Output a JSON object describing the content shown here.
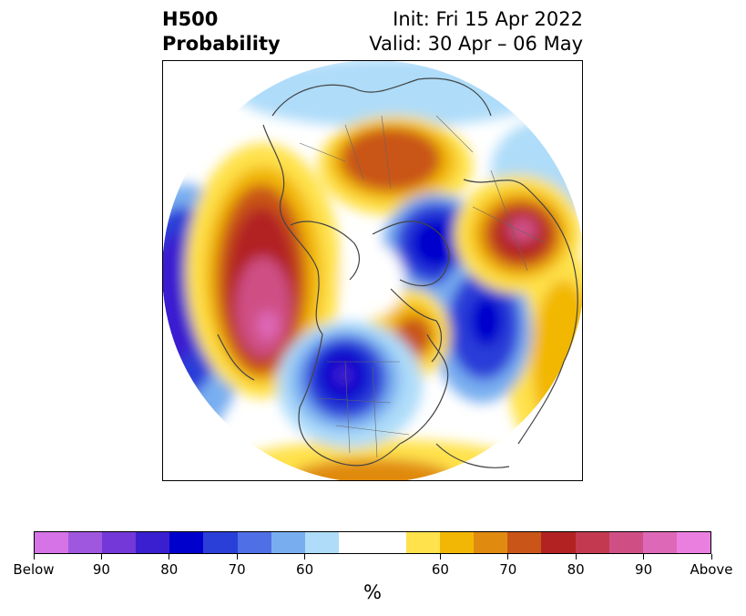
{
  "header": {
    "title_line1": "H500",
    "title_line2": "Probability",
    "init": "Init: Fri 15 Apr 2022",
    "valid": "Valid: 30 Apr – 06 May"
  },
  "map": {
    "projection": "north-polar-stereographic",
    "features": [
      "coastlines",
      "country-borders",
      "state-province-borders"
    ]
  },
  "colorbar": {
    "colors": [
      "#d673e6",
      "#a057e0",
      "#7438d8",
      "#3a1fd0",
      "#0000cc",
      "#2a3ed8",
      "#4f6fe6",
      "#78aef0",
      "#aedcf9",
      "#ffffff",
      "#ffffff",
      "#ffe24c",
      "#f2b705",
      "#e08a10",
      "#c95519",
      "#b22222",
      "#c33a50",
      "#cf4f85",
      "#de68b8",
      "#ea7fe0"
    ],
    "tick_labels": [
      "Below",
      "90",
      "80",
      "70",
      "60",
      "60",
      "70",
      "80",
      "90",
      "Above"
    ],
    "units": "%"
  }
}
